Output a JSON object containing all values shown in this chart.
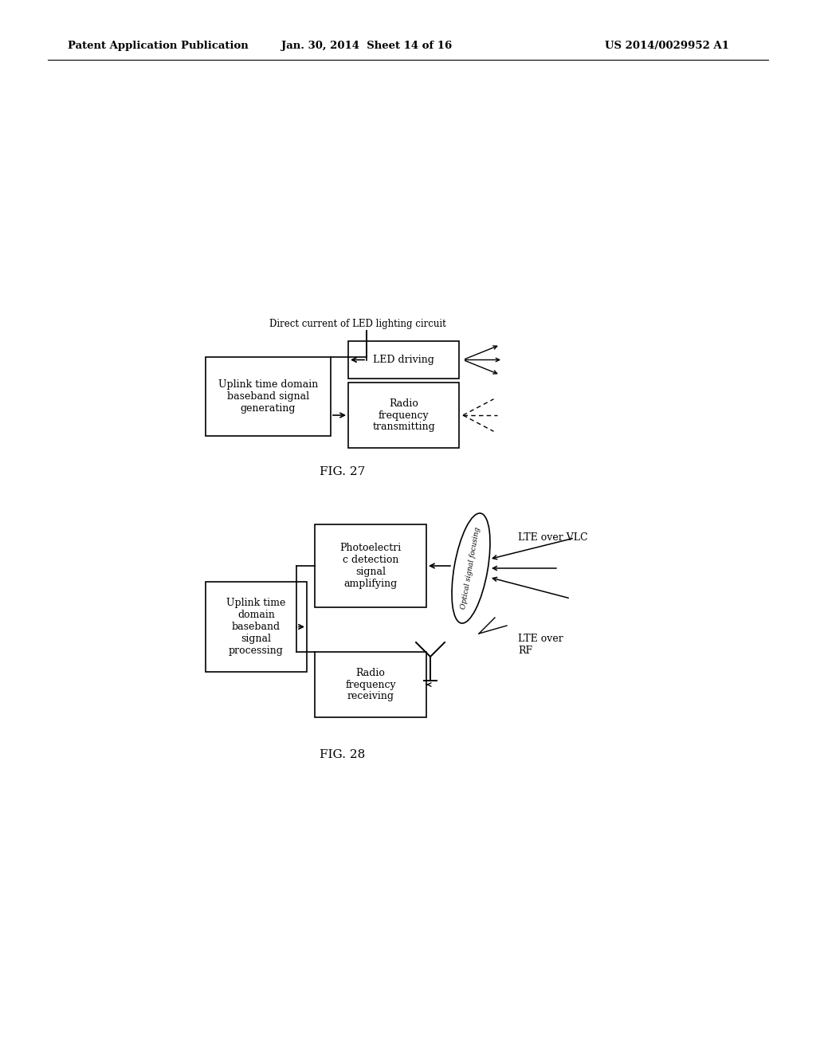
{
  "bg_color": "#ffffff",
  "header_left": "Patent Application Publication",
  "header_mid": "Jan. 30, 2014  Sheet 14 of 16",
  "header_right": "US 2014/0029952 A1",
  "fig27_label": "FIG. 27",
  "fig28_label": "FIG. 28",
  "fig27": {
    "dc_label": "Direct current of LED lighting circuit",
    "box1_label": "Uplink time domain\nbaseband signal\ngenerating",
    "box2_label": "LED driving",
    "box3_label": "Radio\nfrequency\ntransmitting"
  },
  "fig28": {
    "box1_label": "Uplink time\ndomain\nbaseband\nsignal\nprocessing",
    "box2_label": "Photoelectri\nc detection\nsignal\namplifying",
    "box3_label": "Radio\nfrequency\nreceiving",
    "ellipse_label": "Optical signal focusing",
    "label_vlc": "LTE over VLC",
    "label_rf": "LTE over\nRF"
  }
}
